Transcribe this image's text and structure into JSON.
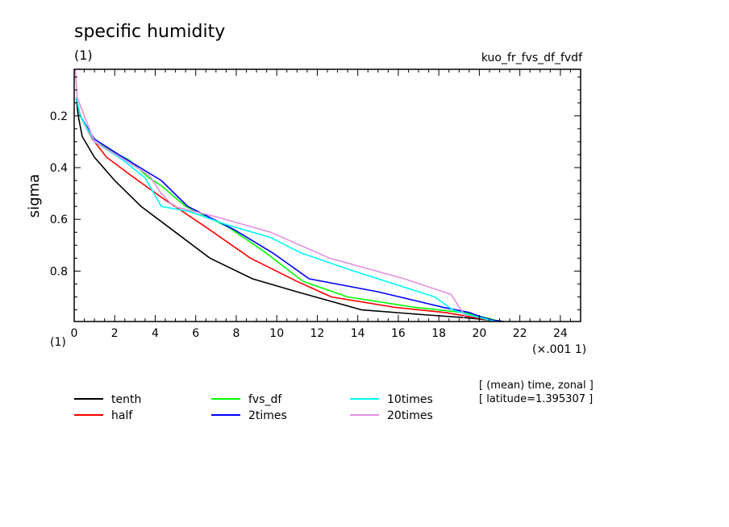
{
  "chart_data": {
    "type": "line",
    "title": "specific humidity",
    "units_label": "(1)",
    "experiment": "kuo_fr_fvs_df_fvdf",
    "ylabel": "sigma",
    "yunits": "(1)",
    "xunits": "(×.001 1)",
    "xlim": [
      0,
      25
    ],
    "ylim": [
      0.02,
      0.995
    ],
    "y_inverted": true,
    "xticks": [
      0,
      2,
      4,
      6,
      8,
      10,
      12,
      14,
      16,
      18,
      20,
      22,
      24
    ],
    "yticks": [
      0.2,
      0.4,
      0.6,
      0.8
    ],
    "grid": false,
    "legend_placement": "below",
    "notes": [
      "[ (mean) time, zonal ]",
      "[ latitude=1.395307 ]"
    ],
    "series": [
      {
        "name": "tenth",
        "color": "#000000",
        "points": [
          [
            0.1,
            0.13
          ],
          [
            0.2,
            0.2
          ],
          [
            0.4,
            0.28
          ],
          [
            1,
            0.36
          ],
          [
            2,
            0.45
          ],
          [
            3.3,
            0.55
          ],
          [
            5,
            0.65
          ],
          [
            6.7,
            0.75
          ],
          [
            8.8,
            0.83
          ],
          [
            11,
            0.88
          ],
          [
            14.2,
            0.95
          ],
          [
            17.5,
            0.97
          ],
          [
            19.3,
            0.98
          ],
          [
            20.6,
            0.99
          ],
          [
            21,
            0.995
          ]
        ]
      },
      {
        "name": "half",
        "color": "#ff0000",
        "points": [
          [
            0.1,
            0.13
          ],
          [
            0.3,
            0.2
          ],
          [
            0.9,
            0.29
          ],
          [
            1.6,
            0.36
          ],
          [
            2.8,
            0.43
          ],
          [
            4.4,
            0.52
          ],
          [
            6.5,
            0.63
          ],
          [
            8.7,
            0.75
          ],
          [
            11,
            0.84
          ],
          [
            12.7,
            0.9
          ],
          [
            15.8,
            0.94
          ],
          [
            18.3,
            0.96
          ],
          [
            19.8,
            0.98
          ],
          [
            20.6,
            0.99
          ],
          [
            21.2,
            0.995
          ]
        ]
      },
      {
        "name": "fvs_df",
        "color": "#00ff00",
        "points": [
          [
            0.1,
            0.13
          ],
          [
            0.3,
            0.2
          ],
          [
            1,
            0.3
          ],
          [
            2.7,
            0.37
          ],
          [
            3.7,
            0.44
          ],
          [
            4.3,
            0.47
          ],
          [
            5.5,
            0.55
          ],
          [
            7.6,
            0.63
          ],
          [
            9.3,
            0.72
          ],
          [
            11.3,
            0.84
          ],
          [
            13.5,
            0.9
          ],
          [
            16.8,
            0.94
          ],
          [
            19.2,
            0.96
          ],
          [
            20.3,
            0.98
          ],
          [
            20.8,
            0.99
          ],
          [
            21.2,
            0.995
          ]
        ]
      },
      {
        "name": "2times",
        "color": "#0000ff",
        "points": [
          [
            0.1,
            0.13
          ],
          [
            0.3,
            0.2
          ],
          [
            1,
            0.29
          ],
          [
            2.2,
            0.35
          ],
          [
            4.3,
            0.45
          ],
          [
            5.6,
            0.55
          ],
          [
            7.9,
            0.64
          ],
          [
            9.8,
            0.73
          ],
          [
            11.6,
            0.83
          ],
          [
            15,
            0.88
          ],
          [
            18.2,
            0.94
          ],
          [
            19.5,
            0.96
          ],
          [
            20.2,
            0.98
          ],
          [
            20.7,
            0.99
          ],
          [
            21.2,
            0.995
          ]
        ]
      },
      {
        "name": "10times",
        "color": "#00ffff",
        "points": [
          [
            0.1,
            0.13
          ],
          [
            0.3,
            0.2
          ],
          [
            1,
            0.3
          ],
          [
            2.4,
            0.37
          ],
          [
            3.5,
            0.44
          ],
          [
            4.3,
            0.55
          ],
          [
            5.7,
            0.57
          ],
          [
            7.5,
            0.62
          ],
          [
            9.7,
            0.67
          ],
          [
            11.2,
            0.73
          ],
          [
            13.8,
            0.8
          ],
          [
            17.8,
            0.9
          ],
          [
            18.7,
            0.95
          ],
          [
            19.5,
            0.97
          ],
          [
            20.3,
            0.985
          ],
          [
            20.8,
            0.995
          ]
        ]
      },
      {
        "name": "20times",
        "color": "#e090e0",
        "points": [
          [
            0.05,
            0.02
          ],
          [
            0.15,
            0.13
          ],
          [
            0.5,
            0.2
          ],
          [
            1,
            0.3
          ],
          [
            2.5,
            0.37
          ],
          [
            3.7,
            0.43
          ],
          [
            4.3,
            0.5
          ],
          [
            4.9,
            0.55
          ],
          [
            7,
            0.59
          ],
          [
            9.7,
            0.65
          ],
          [
            12.6,
            0.75
          ],
          [
            16.3,
            0.83
          ],
          [
            18.6,
            0.89
          ],
          [
            19.1,
            0.95
          ],
          [
            19.3,
            0.97
          ],
          [
            19.2,
            0.98
          ]
        ]
      }
    ]
  }
}
